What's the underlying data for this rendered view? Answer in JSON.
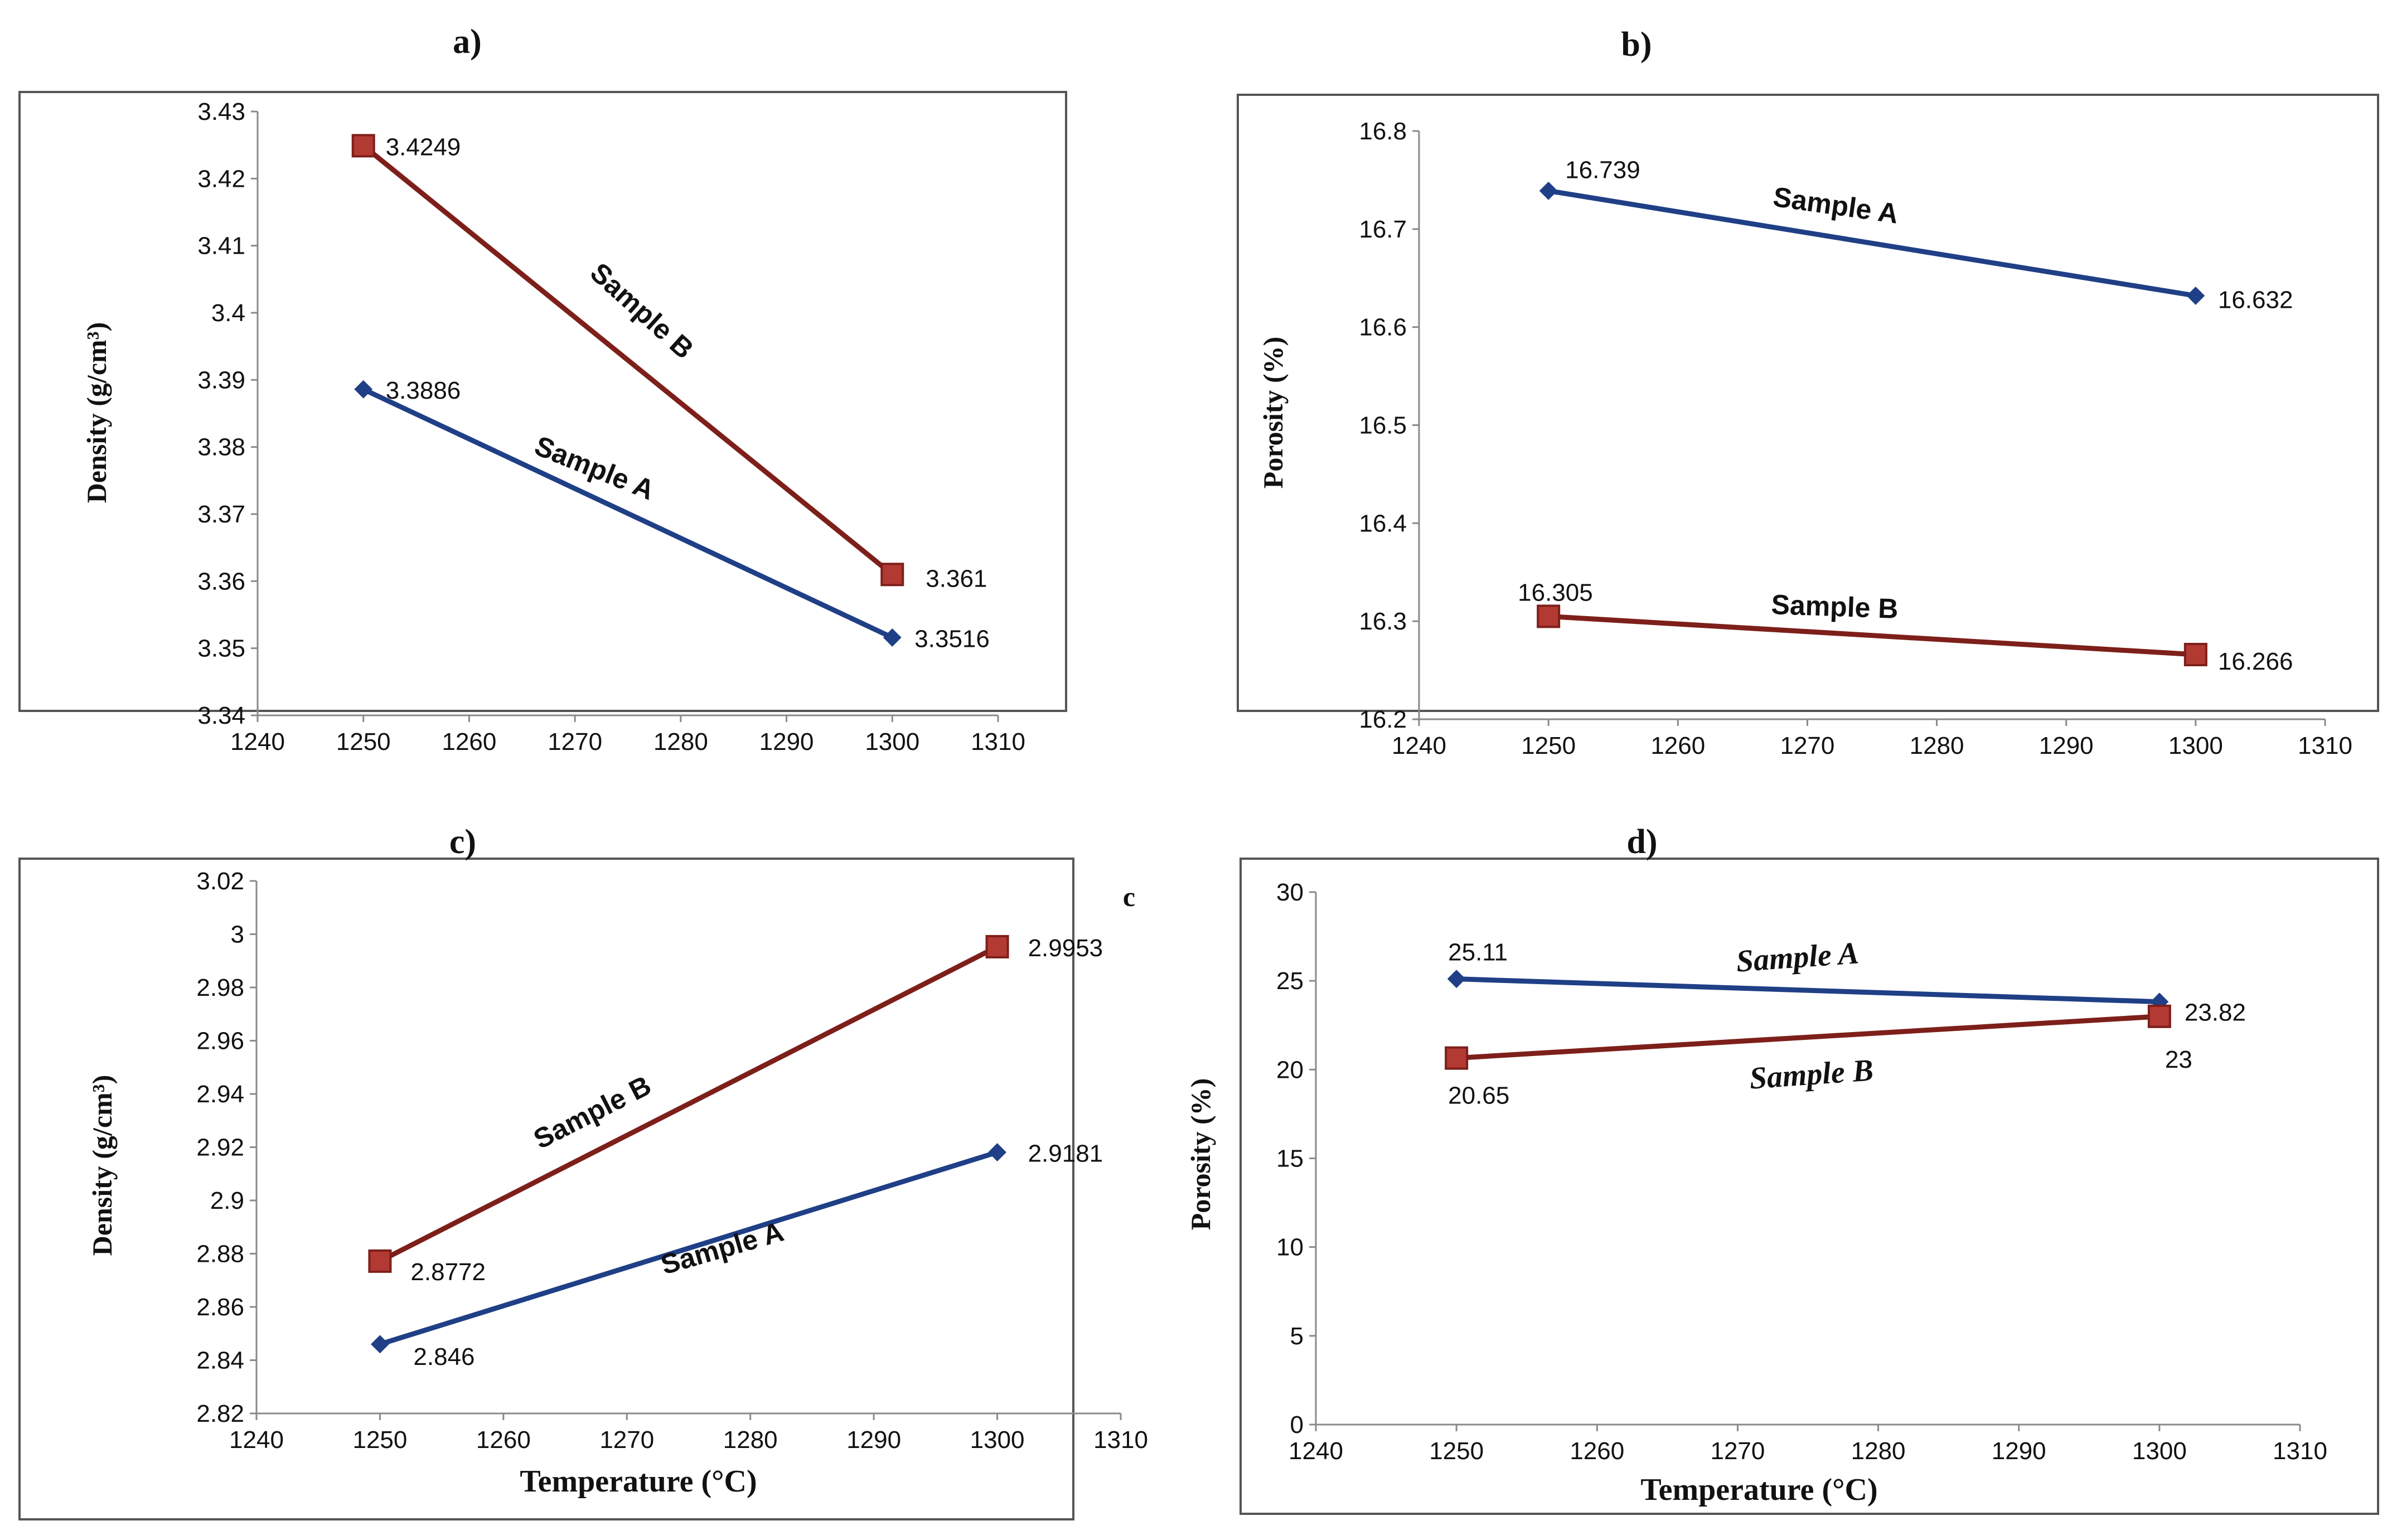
{
  "colors": {
    "sample_a": "#1f3f86",
    "sample_b": "#7d1f1a",
    "marker_b_fill": "#b23a33"
  },
  "chart_data": [
    {
      "id": "a",
      "type": "line",
      "panel_title": "a)",
      "ylabel": "Density (g/cm³)",
      "xlabel": "",
      "corner_label": "",
      "xlim": [
        1240,
        1310
      ],
      "xticks": [
        1240,
        1250,
        1260,
        1270,
        1280,
        1290,
        1300,
        1310
      ],
      "ylim": [
        3.34,
        3.43
      ],
      "yticks": [
        "3.34",
        "3.35",
        "3.36",
        "3.37",
        "3.38",
        "3.39",
        "3.4",
        "3.41",
        "3.42",
        "3.43"
      ],
      "series": [
        {
          "name": "Sample A",
          "x": [
            1250,
            1300
          ],
          "values": [
            3.3886,
            3.3516
          ],
          "point_labels": [
            "3.3886",
            "3.3516"
          ],
          "marker": "diamond"
        },
        {
          "name": "Sample B",
          "x": [
            1250,
            1300
          ],
          "values": [
            3.4249,
            3.361
          ],
          "point_labels": [
            "3.4249",
            "3.361"
          ],
          "marker": "square"
        }
      ]
    },
    {
      "id": "b",
      "type": "line",
      "panel_title": "b)",
      "ylabel": "Porosity (%)",
      "xlabel": "",
      "corner_label": "",
      "xlim": [
        1240,
        1310
      ],
      "xticks": [
        1240,
        1250,
        1260,
        1270,
        1280,
        1290,
        1300,
        1310
      ],
      "ylim": [
        16.2,
        16.8
      ],
      "yticks": [
        "16.2",
        "16.3",
        "16.4",
        "16.5",
        "16.6",
        "16.7",
        "16.8"
      ],
      "series": [
        {
          "name": "Sample A",
          "x": [
            1250,
            1300
          ],
          "values": [
            16.739,
            16.632
          ],
          "point_labels": [
            "16.739",
            "16.632"
          ],
          "marker": "diamond"
        },
        {
          "name": "Sample B",
          "x": [
            1250,
            1300
          ],
          "values": [
            16.305,
            16.266
          ],
          "point_labels": [
            "16.305",
            "16.266"
          ],
          "marker": "square"
        }
      ]
    },
    {
      "id": "c",
      "type": "line",
      "panel_title": "c)",
      "ylabel": "Density (g/cm³)",
      "xlabel": "Temperature (°C)",
      "corner_label": "c",
      "xlim": [
        1240,
        1310
      ],
      "xticks": [
        1240,
        1250,
        1260,
        1270,
        1280,
        1290,
        1300,
        1310
      ],
      "ylim": [
        2.82,
        3.02
      ],
      "yticks": [
        "2.82",
        "2.84",
        "2.86",
        "2.88",
        "2.9",
        "2.92",
        "2.94",
        "2.96",
        "2.98",
        "3",
        "3.02"
      ],
      "series": [
        {
          "name": "Sample A",
          "x": [
            1250,
            1300
          ],
          "values": [
            2.846,
            2.9181
          ],
          "point_labels": [
            "2.846",
            "2.9181"
          ],
          "marker": "diamond"
        },
        {
          "name": "Sample B",
          "x": [
            1250,
            1300
          ],
          "values": [
            2.8772,
            2.9953
          ],
          "point_labels": [
            "2.8772",
            "2.9953"
          ],
          "marker": "square"
        }
      ]
    },
    {
      "id": "d",
      "type": "line",
      "panel_title": "d)",
      "ylabel": "Porosity (%)",
      "xlabel": "Temperature (°C)",
      "corner_label": "",
      "xlim": [
        1240,
        1310
      ],
      "xticks": [
        1240,
        1250,
        1260,
        1270,
        1280,
        1290,
        1300,
        1310
      ],
      "ylim": [
        0,
        30
      ],
      "yticks": [
        "0",
        "5",
        "10",
        "15",
        "20",
        "25",
        "30"
      ],
      "series": [
        {
          "name": "Sample A",
          "x": [
            1250,
            1300
          ],
          "values": [
            25.11,
            23.82
          ],
          "point_labels": [
            "25.11",
            "23.82"
          ],
          "marker": "diamond"
        },
        {
          "name": "Sample B",
          "x": [
            1250,
            1300
          ],
          "values": [
            20.65,
            23
          ],
          "point_labels": [
            "20.65",
            "23"
          ],
          "marker": "square"
        }
      ]
    }
  ]
}
